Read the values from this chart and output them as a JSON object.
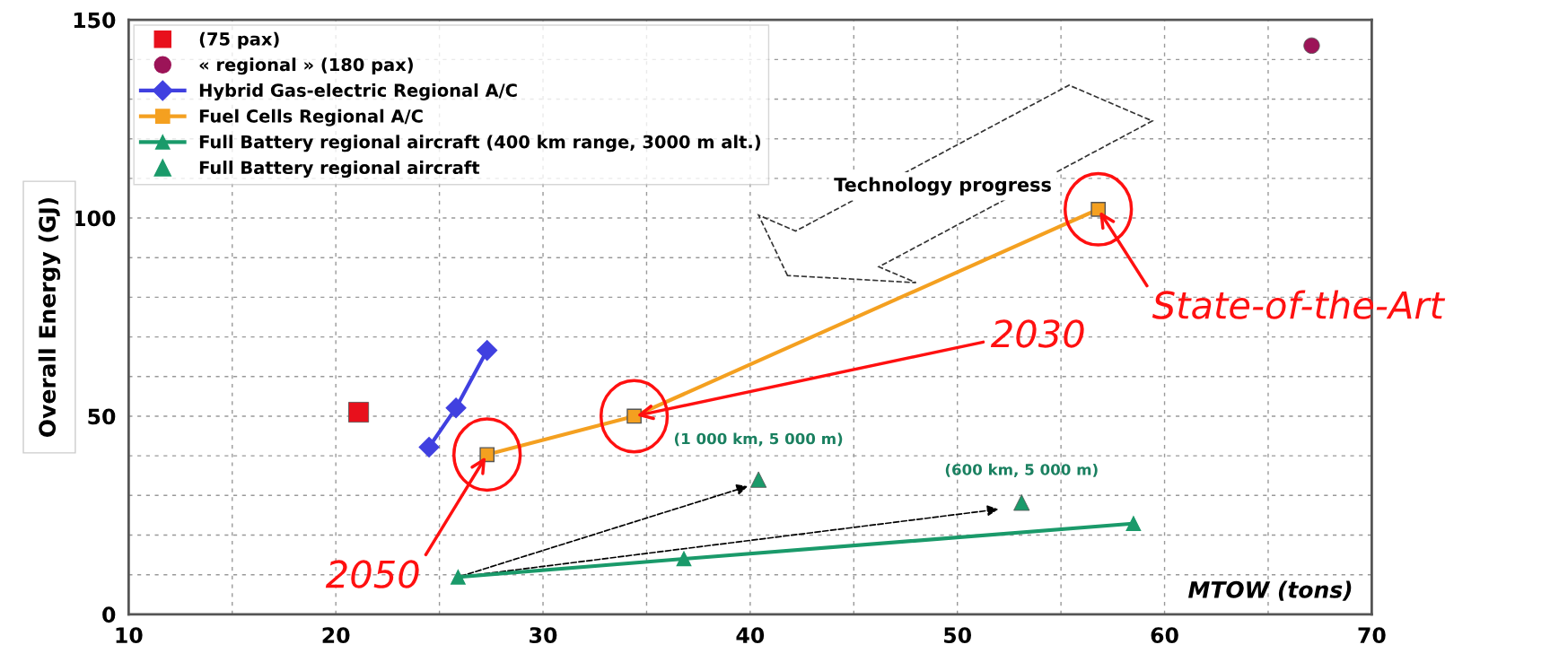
{
  "chart_data": {
    "type": "line",
    "ylabel": "Overall Energy (GJ)",
    "xlabel": "MTOW (tons)",
    "xlim": [
      10,
      70
    ],
    "ylim": [
      0,
      150
    ],
    "xticks": [
      10,
      {
        "value": 15,
        "label": null
      },
      20,
      {
        "value": 25,
        "label": null
      },
      30,
      {
        "value": 35,
        "label": null
      },
      40,
      {
        "value": 45,
        "label": null
      },
      50,
      {
        "value": 55,
        "label": null
      },
      60,
      {
        "value": 65,
        "label": null
      },
      70
    ],
    "yticks": [
      0,
      {
        "value": 10,
        "label": null
      },
      {
        "value": 20,
        "label": null
      },
      {
        "value": 30,
        "label": null
      },
      {
        "value": 40,
        "label": null
      },
      50,
      {
        "value": 60,
        "label": null
      },
      {
        "value": 70,
        "label": null
      },
      {
        "value": 80,
        "label": null
      },
      {
        "value": 90,
        "label": null
      },
      100,
      {
        "value": 110,
        "label": null
      },
      {
        "value": 120,
        "label": null
      },
      {
        "value": 130,
        "label": null
      },
      {
        "value": 140,
        "label": null
      },
      150
    ],
    "grid": true,
    "legend": "top left",
    "series": [
      {
        "name": "(75 pax)",
        "color": "#e8101c",
        "type": "scatter",
        "marker": "square",
        "x": [
          21.1
        ],
        "values": [
          51
        ]
      },
      {
        "name": "« regional » (180 pax)",
        "color": "#9c1458",
        "type": "scatter",
        "marker": "circle",
        "x": [
          67.1
        ],
        "values": [
          143.5
        ]
      },
      {
        "name": "Hybrid Gas-electric Regional A/C",
        "color": "#4040e0",
        "marker": "diamond",
        "x": [
          24.5,
          25.8,
          27.3
        ],
        "values": [
          42.2,
          52.1,
          66.6
        ]
      },
      {
        "name": "Fuel Cells Regional A/C",
        "color": "#f4a020",
        "marker": "square",
        "x": [
          27.3,
          34.4,
          56.8
        ],
        "values": [
          40.3,
          50,
          102.2
        ]
      },
      {
        "name": "Full Battery regional aircraft (400 km range, 3000 m alt.)",
        "color": "#1a9a6a",
        "marker": "triangle",
        "x": [
          25.9,
          36.8,
          58.5
        ],
        "values": [
          9.4,
          14.0,
          22.9
        ]
      },
      {
        "name": "Full Battery regional aircraft",
        "color": "#1a9a6a",
        "type": "scatter",
        "marker": "triangle",
        "x": [
          40.4,
          53.1
        ],
        "values": [
          34.0,
          28.2
        ]
      }
    ],
    "annotations": [
      {
        "text": "(1 000 km, 5 000 m)",
        "x": 40.4,
        "y": 34.0
      },
      {
        "text": "(600 km, 5 000 m)",
        "x": 53.1,
        "y": 28.2
      },
      {
        "text": "2050",
        "x": 27.3,
        "y": 40.3
      },
      {
        "text": "2030",
        "x": 34.4,
        "y": 50
      },
      {
        "text": "State-of-the-Art",
        "x": 56.8,
        "y": 102.2
      },
      "Technology progress"
    ]
  }
}
